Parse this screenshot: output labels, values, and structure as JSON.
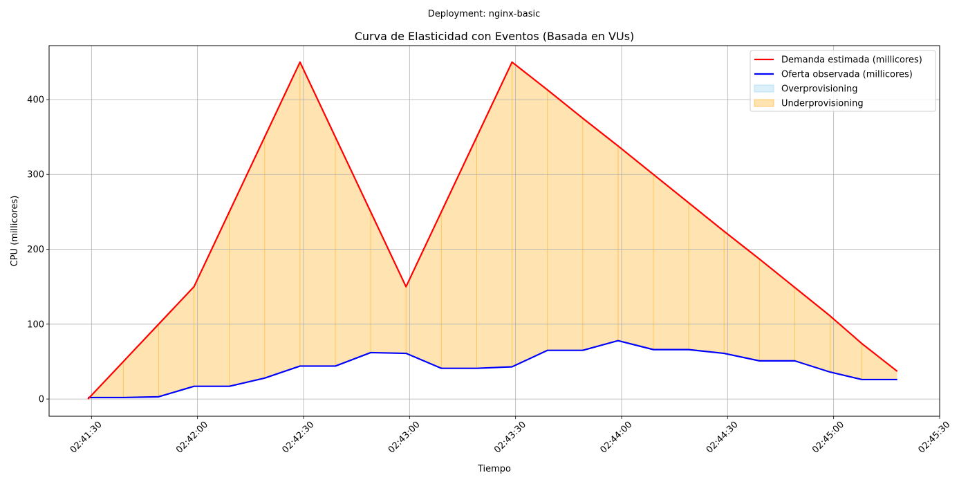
{
  "suptitle": "Deployment: nginx-basic",
  "chart_data": {
    "type": "line",
    "title": "Curva de Elasticidad con Eventos (Basada en VUs)",
    "xlabel": "Tiempo",
    "ylabel": "CPU (millicores)",
    "x_ticks": [
      "02:41:30",
      "02:42:00",
      "02:42:30",
      "02:43:00",
      "02:43:30",
      "02:44:00",
      "02:44:30",
      "02:45:00",
      "02:45:30"
    ],
    "y_ticks": [
      0,
      100,
      200,
      300,
      400
    ],
    "xlim": [
      "02:41:18",
      "02:45:30"
    ],
    "ylim": [
      -23,
      472
    ],
    "grid": true,
    "legend_position": "top-right",
    "x": [
      "02:41:29",
      "02:41:39",
      "02:41:49",
      "02:41:59",
      "02:42:09",
      "02:42:19",
      "02:42:29",
      "02:42:39",
      "02:42:49",
      "02:42:59",
      "02:43:09",
      "02:43:19",
      "02:43:29",
      "02:43:39",
      "02:43:49",
      "02:43:59",
      "02:44:09",
      "02:44:19",
      "02:44:29",
      "02:44:39",
      "02:44:49",
      "02:44:59",
      "02:45:08",
      "02:45:18"
    ],
    "series": [
      {
        "name": "Demanda estimada (millicores)",
        "color": "#ff0000",
        "values": [
          0,
          50,
          100,
          150,
          250,
          350,
          450,
          350,
          250,
          150,
          250,
          350,
          450,
          413,
          375,
          338,
          300,
          262,
          224,
          187,
          149,
          111,
          74,
          37
        ]
      },
      {
        "name": "Oferta observada (millicores)",
        "color": "#0000ff",
        "values": [
          2,
          2,
          3,
          17,
          17,
          28,
          44,
          44,
          62,
          61,
          41,
          41,
          43,
          65,
          65,
          78,
          66,
          66,
          61,
          51,
          51,
          36,
          26,
          26
        ]
      }
    ],
    "fills": [
      {
        "name": "Overprovisioning",
        "color": "#87ceeb"
      },
      {
        "name": "Underprovisioning",
        "color": "#ffa500"
      }
    ]
  }
}
